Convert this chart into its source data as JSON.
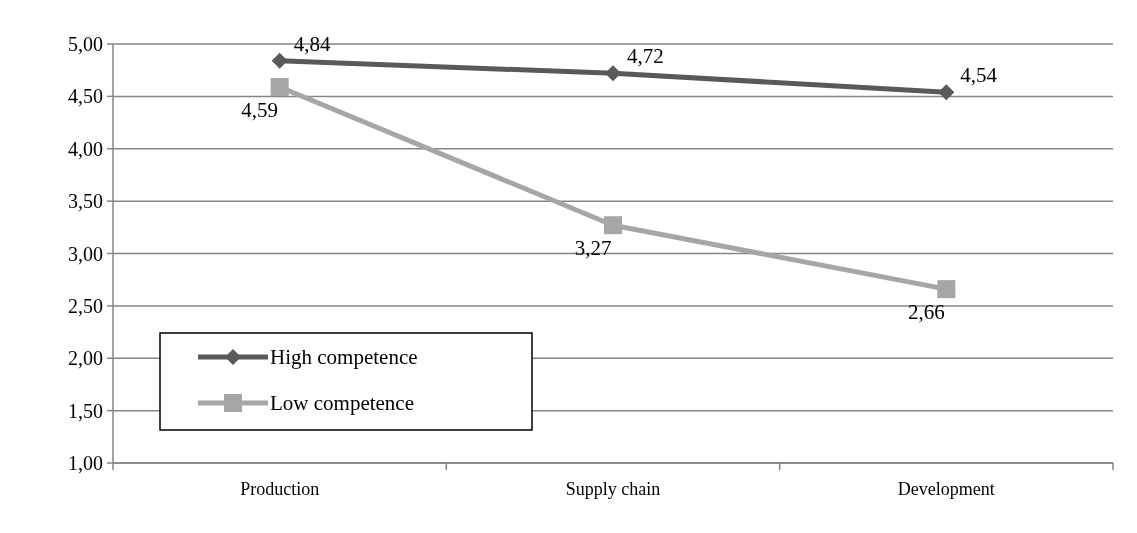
{
  "chart_data": {
    "type": "line",
    "categories": [
      "Production",
      "Supply chain",
      "Development"
    ],
    "series": [
      {
        "name": "High competence",
        "color": "#595959",
        "values": [
          4.84,
          4.72,
          4.54
        ],
        "marker": "diamond",
        "value_labels": [
          "4,84",
          "4,72",
          "4,54"
        ]
      },
      {
        "name": "Low competence",
        "color": "#a6a6a6",
        "values": [
          4.59,
          3.27,
          2.66
        ],
        "marker": "square",
        "value_labels": [
          "4,59",
          "3,27",
          "2,66"
        ]
      }
    ],
    "ylim": [
      1,
      5
    ],
    "yticks": [
      {
        "value": 1,
        "label": "1,00"
      },
      {
        "value": 1.5,
        "label": "1,50"
      },
      {
        "value": 2,
        "label": "2,00"
      },
      {
        "value": 2.5,
        "label": "2,50"
      },
      {
        "value": 3,
        "label": "3,00"
      },
      {
        "value": 3.5,
        "label": "3,50"
      },
      {
        "value": 4,
        "label": "4,00"
      },
      {
        "value": 4.5,
        "label": "4,50"
      },
      {
        "value": 5,
        "label": "5,00"
      }
    ],
    "grid": "y",
    "legend": "bottom left",
    "line_style": "solid"
  }
}
